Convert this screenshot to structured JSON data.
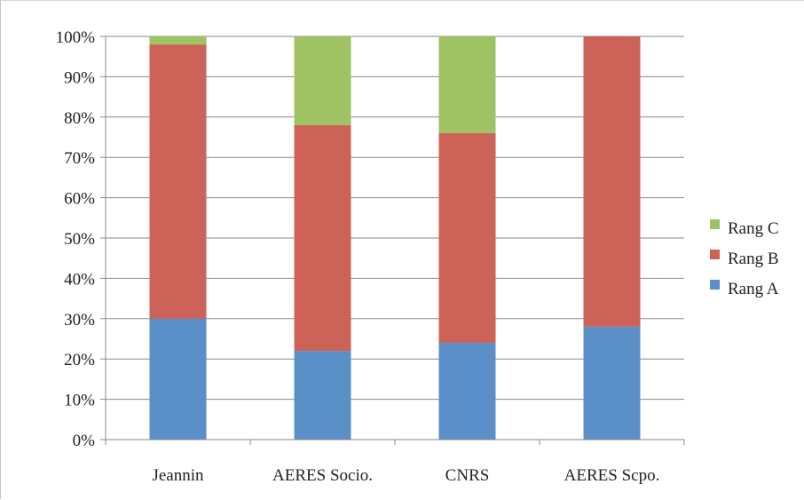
{
  "chart_data": {
    "type": "bar",
    "stacked": true,
    "percent": true,
    "categories": [
      "Jeannin",
      "AERES Socio.",
      "CNRS",
      "AERES Scpo."
    ],
    "series": [
      {
        "name": "Rang A",
        "values": [
          30,
          22,
          24,
          28
        ],
        "color": "#5b8fc8"
      },
      {
        "name": "Rang B",
        "values": [
          68,
          56,
          52,
          72
        ],
        "color": "#cc6258"
      },
      {
        "name": "Rang C",
        "values": [
          2,
          22,
          24,
          0
        ],
        "color": "#9fc262"
      }
    ],
    "yticks": [
      "0%",
      "10%",
      "20%",
      "30%",
      "40%",
      "50%",
      "60%",
      "70%",
      "80%",
      "90%",
      "100%"
    ],
    "ylim": [
      0,
      100
    ],
    "grid": true,
    "legend_position": "right",
    "legend_order": [
      "Rang C",
      "Rang B",
      "Rang A"
    ]
  }
}
